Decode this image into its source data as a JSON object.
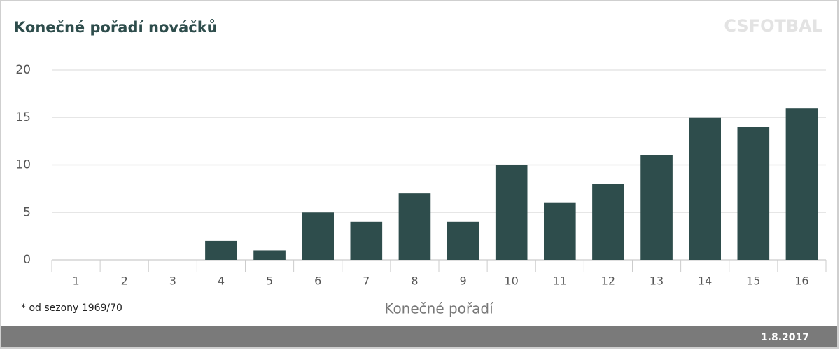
{
  "chart_data": {
    "type": "bar",
    "title": "Konečné pořadí nováčků",
    "watermark": "CSFOTBAL",
    "note": "* od sezony 1969/70",
    "x_label": "Konečné pořadí",
    "date": "1.8.2017",
    "categories": [
      "1",
      "2",
      "3",
      "4",
      "5",
      "6",
      "7",
      "8",
      "9",
      "10",
      "11",
      "12",
      "13",
      "14",
      "15",
      "16"
    ],
    "values": [
      0,
      0,
      0,
      2,
      1,
      5,
      4,
      7,
      4,
      10,
      6,
      8,
      11,
      15,
      14,
      16
    ],
    "color": "#2e4d4c",
    "ylim": [
      0,
      20
    ],
    "yticks": [
      0,
      5,
      10,
      15,
      20
    ],
    "grid": true
  }
}
